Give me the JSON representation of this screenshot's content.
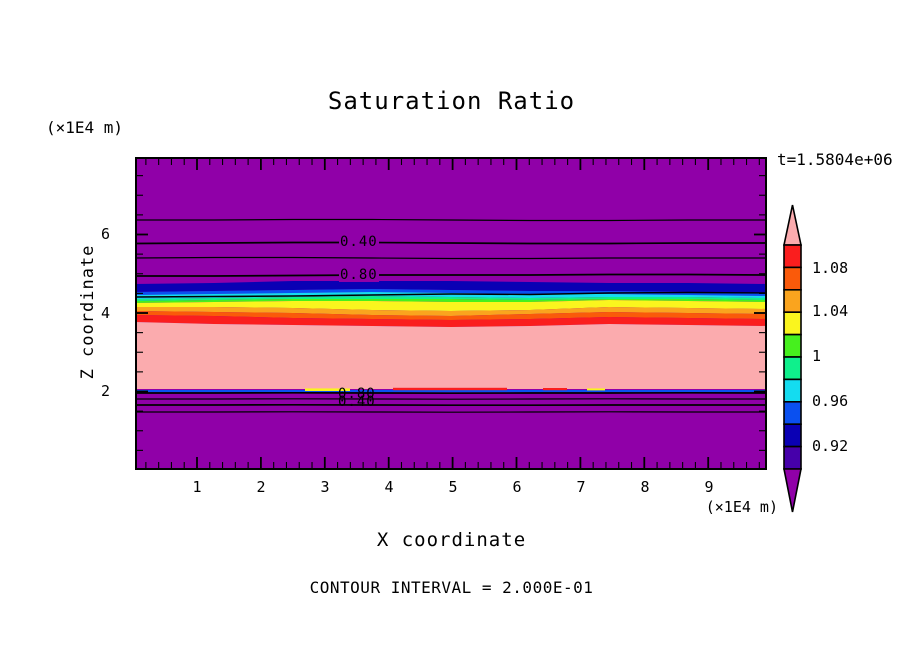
{
  "title": "Saturation Ratio",
  "timestamp": "t=1.5804e+06",
  "axes": {
    "x_label": "X coordinate",
    "x_unit": "(×1E4 m)",
    "y_label": "Z coordinate",
    "y_unit": "(×1E4 m)",
    "x_tick_labels": [
      "1",
      "2",
      "3",
      "4",
      "5",
      "6",
      "7",
      "8",
      "9"
    ],
    "y_tick_labels": [
      "6",
      "4",
      "2"
    ]
  },
  "footer": {
    "contour_note": "CONTOUR INTERVAL = 2.000E-01"
  },
  "contour_labels": {
    "upper_040": "0.40",
    "upper_080": "0.80",
    "lower_080": "0.80",
    "lower_040": "0.40"
  },
  "colorbar": {
    "tick_labels": [
      "1.08",
      "1.04",
      "1",
      "0.96",
      "0.92"
    ],
    "segment_colors_top_to_bottom": [
      "#fa1e1e",
      "#fa5a0a",
      "#faa41e",
      "#faf51e",
      "#46f01e",
      "#0ff08c",
      "#14dcf0",
      "#0a50f0",
      "#0a00b4",
      "#4600aa"
    ],
    "arrow_top_color": "#fbabae",
    "arrow_bottom_color": "#9000a8"
  },
  "colors": {
    "background": "#ffffff",
    "field_low": "#9000a8",
    "field_high": "#fbabae",
    "contour_line": "#000000"
  },
  "chart_data": {
    "type": "heatmap",
    "title": "Saturation Ratio",
    "xlabel": "X coordinate",
    "ylabel": "Z coordinate",
    "x_unit": "×1E4 m",
    "z_unit": "×1E4 m",
    "x_range": [
      0,
      9.9
    ],
    "z_range": [
      0,
      8
    ],
    "time_label": "t=1.5804e+06",
    "contour_interval": 0.2,
    "colorbar_boundaries": [
      0.9,
      0.92,
      0.94,
      0.96,
      0.98,
      1.0,
      1.02,
      1.04,
      1.06,
      1.08,
      1.1
    ],
    "colorbar_labeled_values": [
      1.08,
      1.04,
      1,
      0.96,
      0.92
    ],
    "field_description": "Horizontally layered saturation-ratio field, nearly uniform in x: low (<0.90, purple) above z=4.8 and below z=1.95, a rainbow transition band 0.90-1.10 between z=4.0 and z=4.8, high (>1.10, pink) between z=2.05 and z=4.0, with a sharp transition at z=2.0",
    "z_profile": [
      {
        "z_from": 4.8,
        "z_to": 8.0,
        "value": "< 0.90"
      },
      {
        "z_from": 4.0,
        "z_to": 4.8,
        "value": "0.90 to 1.10 rainbow transition"
      },
      {
        "z_from": 2.05,
        "z_to": 4.0,
        "value": "> 1.10"
      },
      {
        "z_from": 1.95,
        "z_to": 2.05,
        "value": "sharp 1.10 to <0.90 transition"
      },
      {
        "z_from": 0.0,
        "z_to": 1.95,
        "value": "< 0.90"
      }
    ],
    "contour_lines_z": {
      "upper": [
        {
          "value": 0.2,
          "z": 6.36
        },
        {
          "value": 0.4,
          "z": 5.77
        },
        {
          "value": 0.6,
          "z": 5.39
        },
        {
          "value": 0.8,
          "z": 4.93
        },
        {
          "value": 1.0,
          "z": 4.42
        }
      ],
      "lower": [
        {
          "value": 0.8,
          "z": 1.95
        },
        {
          "value": 0.6,
          "z": 1.8
        },
        {
          "value": 0.4,
          "z": 1.64
        },
        {
          "value": 0.2,
          "z": 1.46
        }
      ]
    }
  }
}
